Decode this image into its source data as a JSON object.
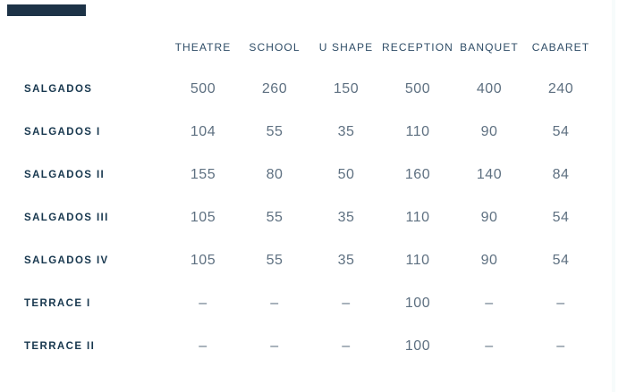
{
  "colors": {
    "page-bg": "#ffffff",
    "top-bar": "#1d3347",
    "header-text": "#2f4d67",
    "label-text": "#17374e",
    "value-text": "#5e7081",
    "right-edge-line": "#f7fbfb"
  },
  "table": {
    "columns": [
      "THEATRE",
      "SCHOOL",
      "U SHAPE",
      "RECEPTION",
      "BANQUET",
      "CABARET"
    ],
    "rows": [
      {
        "label": "SALGADOS",
        "values": [
          "500",
          "260",
          "150",
          "500",
          "400",
          "240"
        ]
      },
      {
        "label": "SALGADOS I",
        "values": [
          "104",
          "55",
          "35",
          "110",
          "90",
          "54"
        ]
      },
      {
        "label": "SALGADOS II",
        "values": [
          "155",
          "80",
          "50",
          "160",
          "140",
          "84"
        ]
      },
      {
        "label": "SALGADOS III",
        "values": [
          "105",
          "55",
          "35",
          "110",
          "90",
          "54"
        ]
      },
      {
        "label": "SALGADOS IV",
        "values": [
          "105",
          "55",
          "35",
          "110",
          "90",
          "54"
        ]
      },
      {
        "label": "TERRACE I",
        "values": [
          "–",
          "–",
          "–",
          "100",
          "–",
          "–"
        ]
      },
      {
        "label": "TERRACE II",
        "values": [
          "–",
          "–",
          "–",
          "100",
          "–",
          "–"
        ]
      }
    ]
  }
}
